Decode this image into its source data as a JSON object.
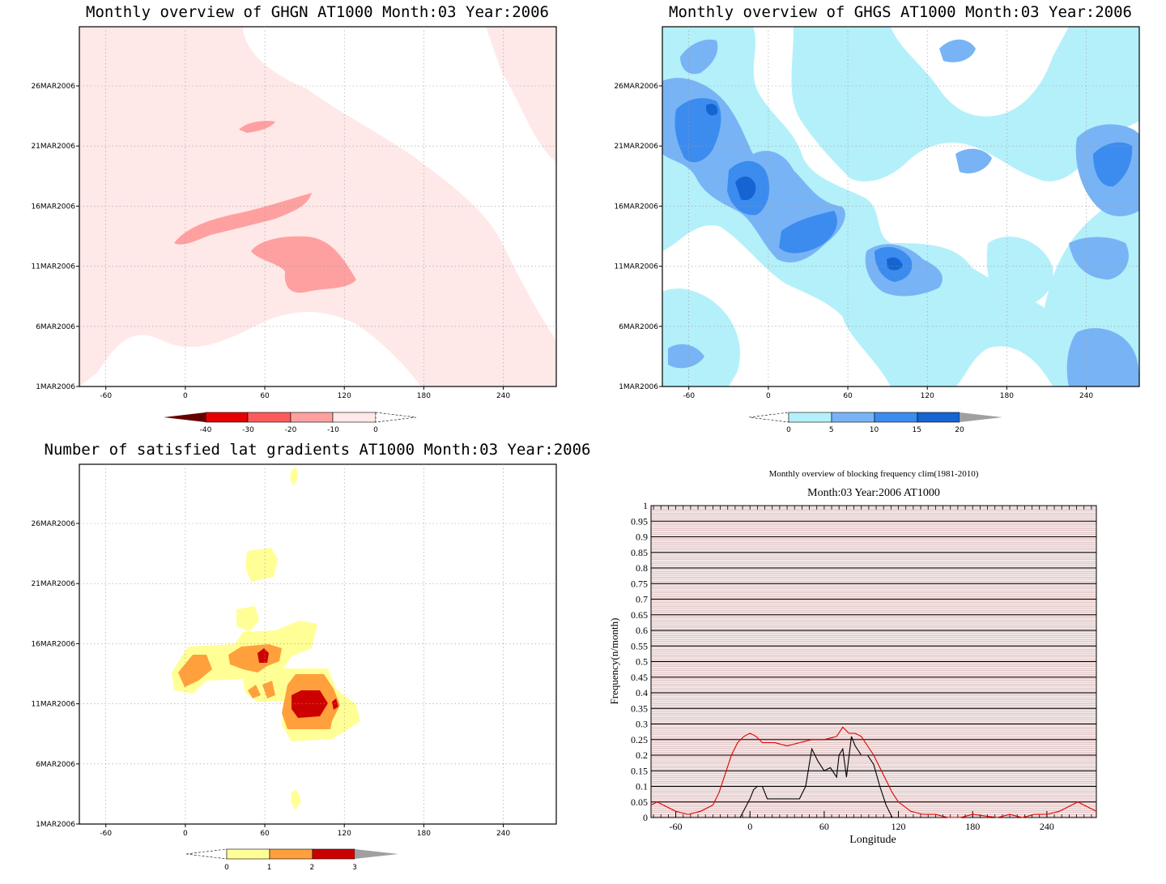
{
  "chart_data": [
    {
      "type": "heatmap",
      "title": "Monthly overview of GHGN AT1000 Month:03 Year:2006",
      "x_ticks": [
        "-60",
        "0",
        "60",
        "120",
        "180",
        "240"
      ],
      "y_ticks": [
        "1MAR2006",
        "6MAR2006",
        "11MAR2006",
        "16MAR2006",
        "21MAR2006",
        "26MAR2006"
      ],
      "xlim": [
        -80,
        280
      ],
      "colorbar": {
        "labels": [
          "-40",
          "-30",
          "-20",
          "-10",
          "0"
        ],
        "colors": [
          "#e60000",
          "#ff5a5a",
          "#ffa0a0",
          "#ffe8e8"
        ]
      },
      "regions": [
        {
          "level": "-10 to 0",
          "color": "#ffe8e8",
          "note": "broad weak negative field across most of domain"
        },
        {
          "level": "-20 to -10",
          "color": "#ffa0a0",
          "lon_range": [
            -10,
            130
          ],
          "date_range": [
            "10MAR2006",
            "17MAR2006"
          ]
        }
      ]
    },
    {
      "type": "heatmap",
      "title": "Monthly overview of GHGS AT1000 Month:03 Year:2006",
      "x_ticks": [
        "-60",
        "0",
        "60",
        "120",
        "180",
        "240"
      ],
      "y_ticks": [
        "1MAR2006",
        "6MAR2006",
        "11MAR2006",
        "16MAR2006",
        "21MAR2006",
        "26MAR2006"
      ],
      "xlim": [
        -80,
        280
      ],
      "colorbar": {
        "labels": [
          "0",
          "5",
          "10",
          "15",
          "20"
        ],
        "colors": [
          "#b4f0fa",
          "#78b4f5",
          "#3c8cf0",
          "#1464d2"
        ]
      },
      "regions": [
        {
          "level": "0 to 5",
          "color": "#b4f0fa",
          "note": "widespread"
        },
        {
          "level": "5 to 10",
          "color": "#78b4f5"
        },
        {
          "level": "10 to 15",
          "color": "#3c8cf0"
        },
        {
          "level": "15 to 20",
          "color": "#1464d2"
        }
      ]
    },
    {
      "type": "heatmap",
      "title": "Number of satisfied lat gradients AT1000 Month:03 Year:2006",
      "x_ticks": [
        "-60",
        "0",
        "60",
        "120",
        "180",
        "240"
      ],
      "y_ticks": [
        "1MAR2006",
        "6MAR2006",
        "11MAR2006",
        "16MAR2006",
        "21MAR2006",
        "26MAR2006"
      ],
      "xlim": [
        -80,
        280
      ],
      "colorbar": {
        "labels": [
          "0",
          "1",
          "2",
          "3"
        ],
        "colors": [
          "#ffff96",
          "#ffa03c",
          "#cd0000"
        ]
      },
      "regions": [
        {
          "level": "0 to 1",
          "color": "#ffff96",
          "lon_range": [
            -10,
            130
          ],
          "date_range": [
            "9MAR2006",
            "23MAR2006"
          ]
        },
        {
          "level": "1 to 2",
          "color": "#ffa03c",
          "lon_range": [
            0,
            115
          ],
          "date_range": [
            "9MAR2006",
            "15MAR2006"
          ]
        },
        {
          "level": "2 to 3",
          "color": "#cd0000",
          "lon_range": [
            80,
            115
          ],
          "date_range": [
            "10MAR2006",
            "12MAR2006"
          ]
        }
      ]
    },
    {
      "type": "line",
      "title": "Monthly overview of blocking frequency clim(1981-2010)",
      "subtitle": "Month:03 Year:2006  AT1000",
      "xlabel": "Longitude",
      "ylabel": "Frequency(n/month)",
      "xlim": [
        -80,
        280
      ],
      "ylim": [
        0,
        1
      ],
      "x_ticks": [
        -60,
        0,
        60,
        120,
        180,
        240
      ],
      "y_ticks": [
        "0",
        "0.05",
        "0.1",
        "0.15",
        "0.2",
        "0.25",
        "0.3",
        "0.35",
        "0.4",
        "0.45",
        "0.5",
        "0.55",
        "0.6",
        "0.65",
        "0.7",
        "0.75",
        "0.8",
        "0.85",
        "0.9",
        "0.95",
        "1"
      ],
      "series": [
        {
          "color": "#e00000",
          "x": [
            -80,
            -75,
            -70,
            -60,
            -50,
            -40,
            -30,
            -25,
            -20,
            -15,
            -10,
            -5,
            0,
            5,
            10,
            20,
            30,
            40,
            50,
            60,
            70,
            75,
            80,
            85,
            90,
            95,
            100,
            105,
            110,
            115,
            120,
            130,
            140,
            150,
            160,
            170,
            180,
            200,
            210,
            220,
            230,
            240,
            250,
            255,
            260,
            265,
            270,
            275,
            280
          ],
          "y": [
            0.04,
            0.05,
            0.04,
            0.02,
            0.01,
            0.02,
            0.04,
            0.08,
            0.14,
            0.2,
            0.24,
            0.26,
            0.27,
            0.26,
            0.24,
            0.24,
            0.23,
            0.24,
            0.25,
            0.25,
            0.26,
            0.29,
            0.27,
            0.27,
            0.26,
            0.23,
            0.2,
            0.16,
            0.12,
            0.08,
            0.05,
            0.02,
            0.01,
            0.01,
            0.0,
            0.0,
            0.01,
            0.0,
            0.01,
            0.0,
            0.01,
            0.01,
            0.02,
            0.03,
            0.04,
            0.05,
            0.04,
            0.03,
            0.02
          ]
        },
        {
          "color": "#000000",
          "x": [
            -8,
            -4,
            0,
            3,
            6,
            10,
            14,
            20,
            30,
            40,
            45,
            50,
            55,
            60,
            65,
            70,
            72,
            75,
            78,
            82,
            85,
            90,
            95,
            100,
            105,
            110,
            115,
            120,
            130
          ],
          "y": [
            0.0,
            0.03,
            0.06,
            0.09,
            0.1,
            0.1,
            0.06,
            0.06,
            0.06,
            0.06,
            0.1,
            0.22,
            0.18,
            0.15,
            0.16,
            0.13,
            0.2,
            0.22,
            0.13,
            0.26,
            0.23,
            0.2,
            0.2,
            0.17,
            0.1,
            0.04,
            0.0,
            0.0,
            0.0
          ]
        }
      ]
    }
  ]
}
